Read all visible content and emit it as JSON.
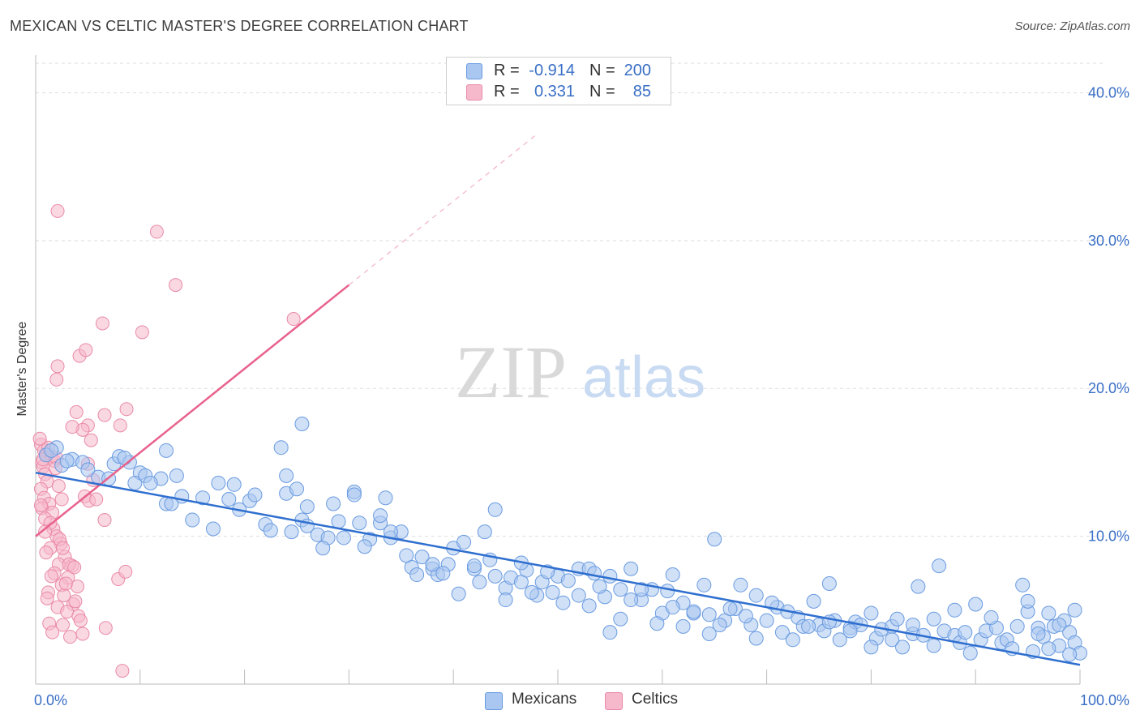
{
  "title": "MEXICAN VS CELTIC MASTER'S DEGREE CORRELATION CHART",
  "source": "Source: ZipAtlas.com",
  "watermark": {
    "zip": "ZIP",
    "atlas": "atlas"
  },
  "legend": {
    "rows": [
      {
        "series": "Mexicans",
        "r_label": "R =",
        "r": "-0.914",
        "n_label": "N =",
        "n": "200",
        "color": "#a9c7f0",
        "stroke": "#6a9be0"
      },
      {
        "series": "Celtics",
        "r_label": "R =",
        "r": "0.331",
        "n_label": "N =",
        "n": "85",
        "color": "#f6b8cb",
        "stroke": "#ea8aa8"
      }
    ],
    "bottom": [
      "Mexicans",
      "Celtics"
    ]
  },
  "colors": {
    "mexicans_fill": "#a9c7f0",
    "mexicans_stroke": "#6a9be0",
    "mexicans_line": "#2f6fcf",
    "celtics_fill": "#f6b8cb",
    "celtics_stroke": "#ea8aa8",
    "celtics_line": "#e8628d",
    "axis_text": "#3a6fc6",
    "grid": "#dddddd"
  },
  "chart_data": {
    "type": "scatter",
    "title": "MEXICAN VS CELTIC MASTER'S DEGREE CORRELATION CHART",
    "xlabel": "",
    "ylabel": "Master's Degree",
    "xlim": [
      0,
      100
    ],
    "ylim": [
      0,
      42
    ],
    "x_tick_labels": [
      "0.0%",
      "100.0%"
    ],
    "y_ticks": [
      10,
      20,
      30,
      40
    ],
    "y_tick_labels": [
      "10.0%",
      "20.0%",
      "30.0%",
      "40.0%"
    ],
    "grid": true,
    "legend_position": "top-center",
    "series": [
      {
        "name": "Mexicans",
        "trend": {
          "x": [
            0,
            100
          ],
          "y": [
            14.3,
            1.3
          ]
        },
        "points": [
          [
            1.0,
            15.5
          ],
          [
            2.0,
            16.0
          ],
          [
            1.5,
            15.8
          ],
          [
            3.5,
            15.2
          ],
          [
            4.5,
            15.0
          ],
          [
            2.5,
            14.8
          ],
          [
            5.0,
            14.5
          ],
          [
            6.0,
            14.0
          ],
          [
            7.5,
            14.9
          ],
          [
            3.0,
            15.1
          ],
          [
            8.0,
            15.4
          ],
          [
            9.0,
            15.0
          ],
          [
            10.0,
            14.3
          ],
          [
            7.0,
            13.9
          ],
          [
            9.5,
            13.6
          ],
          [
            10.5,
            14.1
          ],
          [
            12.0,
            13.9
          ],
          [
            13.5,
            14.1
          ],
          [
            14.0,
            12.7
          ],
          [
            11.0,
            13.6
          ],
          [
            12.5,
            12.2
          ],
          [
            8.5,
            15.3
          ],
          [
            12.5,
            15.8
          ],
          [
            13.0,
            12.2
          ],
          [
            15.0,
            11.1
          ],
          [
            16.0,
            12.6
          ],
          [
            17.0,
            10.5
          ],
          [
            17.5,
            13.6
          ],
          [
            18.5,
            12.5
          ],
          [
            19.0,
            13.5
          ],
          [
            19.5,
            11.8
          ],
          [
            20.5,
            12.4
          ],
          [
            21.0,
            12.8
          ],
          [
            22.0,
            10.8
          ],
          [
            22.5,
            10.4
          ],
          [
            23.5,
            16.0
          ],
          [
            24.0,
            12.9
          ],
          [
            24.5,
            10.3
          ],
          [
            25.5,
            11.1
          ],
          [
            26.0,
            10.7
          ],
          [
            27.0,
            10.1
          ],
          [
            28.0,
            9.9
          ],
          [
            28.5,
            12.2
          ],
          [
            29.5,
            9.9
          ],
          [
            30.5,
            13.0
          ],
          [
            31.0,
            10.9
          ],
          [
            32.0,
            9.8
          ],
          [
            33.0,
            10.9
          ],
          [
            33.5,
            12.6
          ],
          [
            34.0,
            9.9
          ],
          [
            35.0,
            10.3
          ],
          [
            36.0,
            7.9
          ],
          [
            37.0,
            8.6
          ],
          [
            38.0,
            7.8
          ],
          [
            38.5,
            7.4
          ],
          [
            39.5,
            8.1
          ],
          [
            40.0,
            9.2
          ],
          [
            41.0,
            9.6
          ],
          [
            42.0,
            7.8
          ],
          [
            42.5,
            6.9
          ],
          [
            43.0,
            10.3
          ],
          [
            43.5,
            8.4
          ],
          [
            44.0,
            11.8
          ],
          [
            45.0,
            6.5
          ],
          [
            45.5,
            7.2
          ],
          [
            46.5,
            6.9
          ],
          [
            47.0,
            7.7
          ],
          [
            48.0,
            6.0
          ],
          [
            48.5,
            6.9
          ],
          [
            49.5,
            6.2
          ],
          [
            50.0,
            7.3
          ],
          [
            51.0,
            7.0
          ],
          [
            52.0,
            7.8
          ],
          [
            53.0,
            7.8
          ],
          [
            53.5,
            7.5
          ],
          [
            54.5,
            5.9
          ],
          [
            55.0,
            7.3
          ],
          [
            56.0,
            6.4
          ],
          [
            57.0,
            7.8
          ],
          [
            58.0,
            5.7
          ],
          [
            59.0,
            6.4
          ],
          [
            60.0,
            4.8
          ],
          [
            60.5,
            6.3
          ],
          [
            61.0,
            7.4
          ],
          [
            62.0,
            5.5
          ],
          [
            63.0,
            4.8
          ],
          [
            64.0,
            6.7
          ],
          [
            64.5,
            4.7
          ],
          [
            65.0,
            9.8
          ],
          [
            66.0,
            4.3
          ],
          [
            67.0,
            5.1
          ],
          [
            67.5,
            6.7
          ],
          [
            68.5,
            4.0
          ],
          [
            69.0,
            6.0
          ],
          [
            70.0,
            4.3
          ],
          [
            71.0,
            5.2
          ],
          [
            71.5,
            3.5
          ],
          [
            72.0,
            4.9
          ],
          [
            73.0,
            4.5
          ],
          [
            73.5,
            3.9
          ],
          [
            74.5,
            5.6
          ],
          [
            75.0,
            4.0
          ],
          [
            75.5,
            3.6
          ],
          [
            76.0,
            6.8
          ],
          [
            76.5,
            4.3
          ],
          [
            77.0,
            3.0
          ],
          [
            78.0,
            3.8
          ],
          [
            78.5,
            4.2
          ],
          [
            79.0,
            4.0
          ],
          [
            80.0,
            4.8
          ],
          [
            80.5,
            3.1
          ],
          [
            81.0,
            3.7
          ],
          [
            82.0,
            3.9
          ],
          [
            82.5,
            4.4
          ],
          [
            83.0,
            2.5
          ],
          [
            84.0,
            3.4
          ],
          [
            84.5,
            6.6
          ],
          [
            85.0,
            3.3
          ],
          [
            86.0,
            2.6
          ],
          [
            86.5,
            8.0
          ],
          [
            87.0,
            3.6
          ],
          [
            88.0,
            3.3
          ],
          [
            88.5,
            2.8
          ],
          [
            89.0,
            3.5
          ],
          [
            90.0,
            5.4
          ],
          [
            90.5,
            3.0
          ],
          [
            91.0,
            3.6
          ],
          [
            92.0,
            3.8
          ],
          [
            92.5,
            2.8
          ],
          [
            93.0,
            3.0
          ],
          [
            94.0,
            3.9
          ],
          [
            94.5,
            6.7
          ],
          [
            95.0,
            4.9
          ],
          [
            95.5,
            2.2
          ],
          [
            96.0,
            3.8
          ],
          [
            96.5,
            3.2
          ],
          [
            97.0,
            4.8
          ],
          [
            97.5,
            3.9
          ],
          [
            98.0,
            2.6
          ],
          [
            98.5,
            4.3
          ],
          [
            99.0,
            3.5
          ],
          [
            99.5,
            2.8
          ],
          [
            100.0,
            2.1
          ],
          [
            96.0,
            3.4
          ],
          [
            97.0,
            2.4
          ],
          [
            98.0,
            4.0
          ],
          [
            99.0,
            2.0
          ],
          [
            99.5,
            5.0
          ],
          [
            95.0,
            5.6
          ],
          [
            93.5,
            2.4
          ],
          [
            91.5,
            4.5
          ],
          [
            89.5,
            2.1
          ],
          [
            88.0,
            5.0
          ],
          [
            86.0,
            4.4
          ],
          [
            84.0,
            4.0
          ],
          [
            82.0,
            3.0
          ],
          [
            80.0,
            2.5
          ],
          [
            78.0,
            3.6
          ],
          [
            76.0,
            4.2
          ],
          [
            74.0,
            3.9
          ],
          [
            72.5,
            3.0
          ],
          [
            70.5,
            5.5
          ],
          [
            69.0,
            3.1
          ],
          [
            68.0,
            4.6
          ],
          [
            66.5,
            5.1
          ],
          [
            65.5,
            4.0
          ],
          [
            64.5,
            3.4
          ],
          [
            63.0,
            4.9
          ],
          [
            62.0,
            3.9
          ],
          [
            61.0,
            5.2
          ],
          [
            59.5,
            4.1
          ],
          [
            58.0,
            6.4
          ],
          [
            57.0,
            5.7
          ],
          [
            56.0,
            4.4
          ],
          [
            55.0,
            3.5
          ],
          [
            54.0,
            6.6
          ],
          [
            53.0,
            5.3
          ],
          [
            52.0,
            6.0
          ],
          [
            50.5,
            5.5
          ],
          [
            49.0,
            7.6
          ],
          [
            47.5,
            6.2
          ],
          [
            46.5,
            8.2
          ],
          [
            45.0,
            5.7
          ],
          [
            44.0,
            7.3
          ],
          [
            42.0,
            8.0
          ],
          [
            40.5,
            6.1
          ],
          [
            39.0,
            7.5
          ],
          [
            38.0,
            8.1
          ],
          [
            36.5,
            7.4
          ],
          [
            35.5,
            8.7
          ],
          [
            34.0,
            10.3
          ],
          [
            33.0,
            11.4
          ],
          [
            31.5,
            9.3
          ],
          [
            30.5,
            12.8
          ],
          [
            29.0,
            11.0
          ],
          [
            27.5,
            9.2
          ],
          [
            26.0,
            12.0
          ],
          [
            25.0,
            13.2
          ],
          [
            24.0,
            14.1
          ],
          [
            25.5,
            17.6
          ]
        ]
      },
      {
        "name": "Celtics",
        "trend": {
          "x": [
            0,
            30
          ],
          "y": [
            10.0,
            27.0
          ]
        },
        "trend_extension": {
          "x": [
            30,
            48
          ],
          "y": [
            27.0,
            37.2
          ]
        },
        "points": [
          [
            0.5,
            16.2
          ],
          [
            0.8,
            15.8
          ],
          [
            1.0,
            15.5
          ],
          [
            1.2,
            16.0
          ],
          [
            0.6,
            15.0
          ],
          [
            1.5,
            15.4
          ],
          [
            0.7,
            14.7
          ],
          [
            1.8,
            15.1
          ],
          [
            2.0,
            15.3
          ],
          [
            0.9,
            14.2
          ],
          [
            1.1,
            13.7
          ],
          [
            0.5,
            13.2
          ],
          [
            0.8,
            12.6
          ],
          [
            1.3,
            12.2
          ],
          [
            0.6,
            11.9
          ],
          [
            2.5,
            12.5
          ],
          [
            1.6,
            11.6
          ],
          [
            2.2,
            13.4
          ],
          [
            0.9,
            11.2
          ],
          [
            1.7,
            10.5
          ],
          [
            2.0,
            10.0
          ],
          [
            2.4,
            9.5
          ],
          [
            1.4,
            9.2
          ],
          [
            2.8,
            8.6
          ],
          [
            1.0,
            8.9
          ],
          [
            2.2,
            8.1
          ],
          [
            3.5,
            8.0
          ],
          [
            1.8,
            7.5
          ],
          [
            3.1,
            7.2
          ],
          [
            2.5,
            6.7
          ],
          [
            4.0,
            6.6
          ],
          [
            1.2,
            6.2
          ],
          [
            2.7,
            6.0
          ],
          [
            3.6,
            5.4
          ],
          [
            2.1,
            5.2
          ],
          [
            3.0,
            4.9
          ],
          [
            4.1,
            4.6
          ],
          [
            1.3,
            4.1
          ],
          [
            2.6,
            4.0
          ],
          [
            3.3,
            3.2
          ],
          [
            1.6,
            3.5
          ],
          [
            5.0,
            17.5
          ],
          [
            4.5,
            17.2
          ],
          [
            3.9,
            18.4
          ],
          [
            5.3,
            16.5
          ],
          [
            5.0,
            14.9
          ],
          [
            5.5,
            13.8
          ],
          [
            4.7,
            12.7
          ],
          [
            5.1,
            12.4
          ],
          [
            6.6,
            11.1
          ],
          [
            5.8,
            12.5
          ],
          [
            2.1,
            21.5
          ],
          [
            2.0,
            20.6
          ],
          [
            4.2,
            22.2
          ],
          [
            4.8,
            22.6
          ],
          [
            3.5,
            17.4
          ],
          [
            6.4,
            24.4
          ],
          [
            8.1,
            17.5
          ],
          [
            8.7,
            18.6
          ],
          [
            6.6,
            18.2
          ],
          [
            2.1,
            32.0
          ],
          [
            11.6,
            30.6
          ],
          [
            13.4,
            27.0
          ],
          [
            10.2,
            23.8
          ],
          [
            24.7,
            24.7
          ],
          [
            6.7,
            3.8
          ],
          [
            8.3,
            0.9
          ],
          [
            7.9,
            7.1
          ],
          [
            8.6,
            7.6
          ],
          [
            3.2,
            8.1
          ],
          [
            2.3,
            9.8
          ],
          [
            1.5,
            7.3
          ],
          [
            3.8,
            5.6
          ],
          [
            4.5,
            3.4
          ],
          [
            2.9,
            6.8
          ],
          [
            0.4,
            16.6
          ],
          [
            0.7,
            15.2
          ],
          [
            1.9,
            14.6
          ],
          [
            0.5,
            12.1
          ],
          [
            1.4,
            10.9
          ],
          [
            0.9,
            10.3
          ],
          [
            2.6,
            9.2
          ],
          [
            3.7,
            7.9
          ],
          [
            1.1,
            5.8
          ],
          [
            4.3,
            4.3
          ]
        ]
      }
    ]
  }
}
